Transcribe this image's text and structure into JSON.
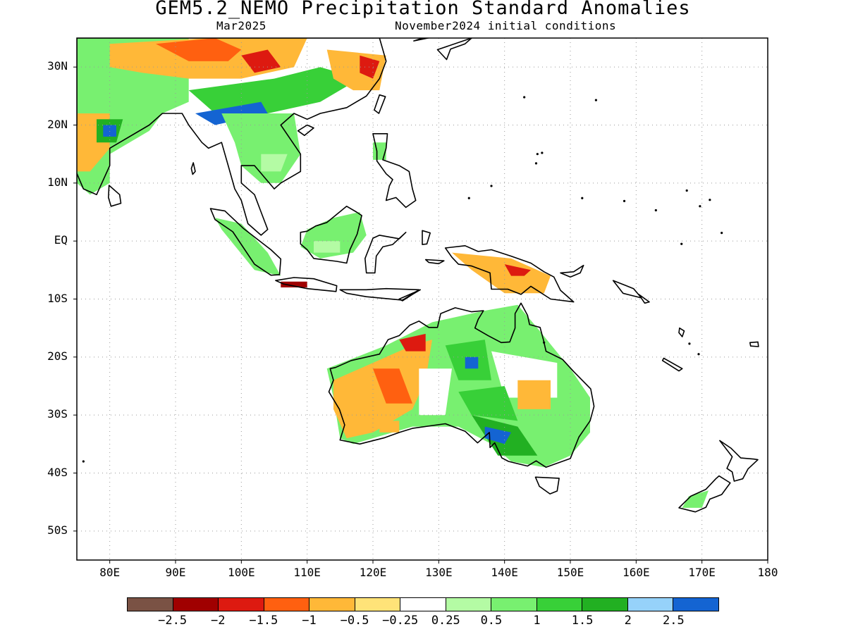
{
  "title": "GEM5.2_NEMO Precipitation Standard Anomalies",
  "subtitle_left": "Mar2025",
  "subtitle_right": "November2024 initial conditions",
  "lat_labels": [
    "30N",
    "20N",
    "10N",
    "EQ",
    "10S",
    "20S",
    "30S",
    "40S",
    "50S"
  ],
  "lon_labels": [
    "80E",
    "90E",
    "100E",
    "110E",
    "120E",
    "130E",
    "140E",
    "150E",
    "160E",
    "170E",
    "180"
  ],
  "lon_values": [
    80,
    90,
    100,
    110,
    120,
    130,
    140,
    150,
    160,
    170,
    180
  ],
  "lat_values": [
    30,
    20,
    10,
    0,
    -10,
    -20,
    -30,
    -40,
    -50
  ],
  "map_extent": {
    "lon_min": 75,
    "lon_max": 180,
    "lat_min": -55,
    "lat_max": 35
  },
  "colorbar": {
    "colors": [
      "#7a5244",
      "#a00000",
      "#dd1a10",
      "#ff6010",
      "#ffb838",
      "#ffe378",
      "#ffffff",
      "#b4fba4",
      "#78f070",
      "#38d038",
      "#22b022",
      "#96d2fa",
      "#1464d2"
    ],
    "labels": [
      "−2.5",
      "−2",
      "−1.5",
      "−1",
      "−0.5",
      "−0.25",
      "0.25",
      "0.5",
      "1",
      "1.5",
      "2",
      "2.5"
    ]
  },
  "colors": {
    "land_outline": "#000000",
    "grid": "#9a9a9a"
  }
}
